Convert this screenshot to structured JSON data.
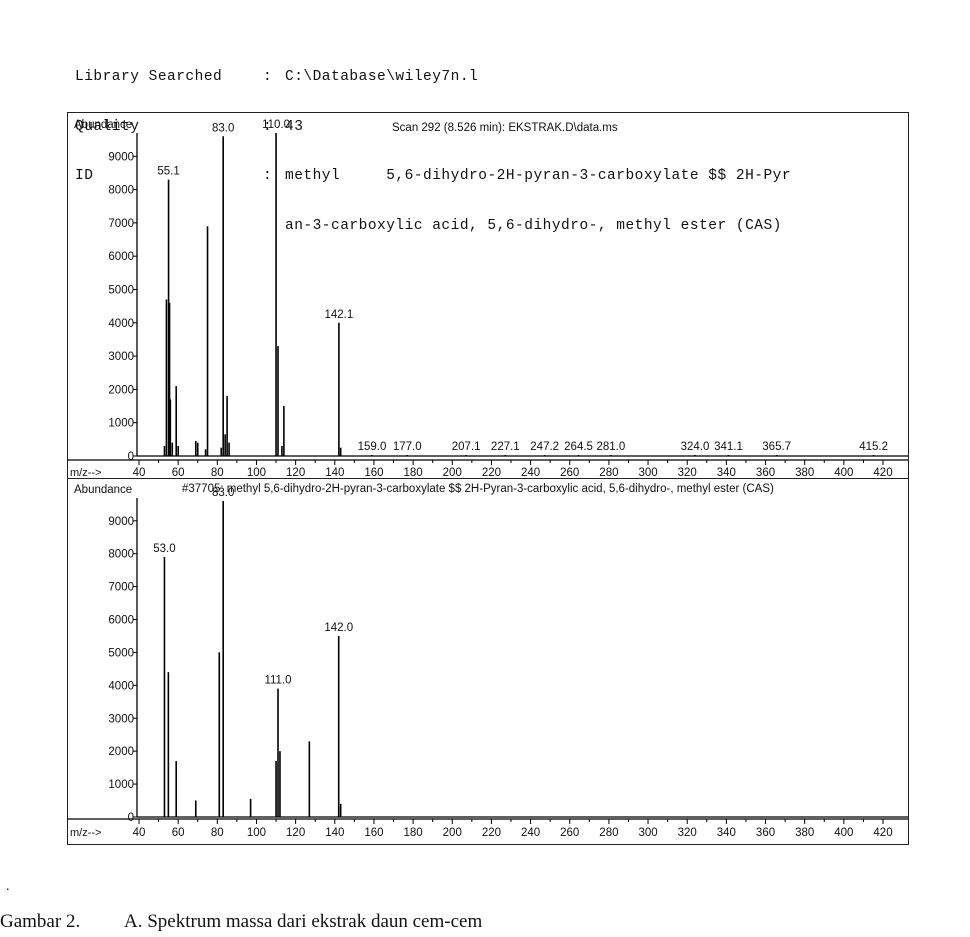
{
  "header": {
    "library_label": "Library Searched",
    "library_value": "C:\\Database\\wiley7n.l",
    "quality_label": "Quality",
    "quality_value": "43",
    "id_label": "ID",
    "id_value_line1": "methyl     5,6-dihydro-2H-pyran-3-carboxylate $$ 2H-Pyr",
    "id_value_line2": "an-3-carboxylic acid, 5,6-dihydro-, methyl ester (CAS)",
    "separator": ":"
  },
  "chart_data": [
    {
      "type": "bar",
      "title": "Scan 292 (8.526 min): EKSTRAK.D\\data.ms",
      "ylabel": "Abundance",
      "xlabel": "m/z-->",
      "xlim": [
        40,
        425
      ],
      "ylim": [
        0,
        10300
      ],
      "xticks": [
        40,
        60,
        80,
        100,
        120,
        140,
        160,
        180,
        200,
        220,
        240,
        260,
        280,
        300,
        320,
        340,
        360,
        380,
        400,
        420
      ],
      "yticks": [
        0,
        1000,
        2000,
        3000,
        4000,
        5000,
        6000,
        7000,
        8000,
        9000
      ],
      "peaks": [
        {
          "mz": 53,
          "abundance": 300
        },
        {
          "mz": 54,
          "abundance": 4700
        },
        {
          "mz": 55.1,
          "abundance": 8300,
          "label": "55.1"
        },
        {
          "mz": 55.6,
          "abundance": 4600
        },
        {
          "mz": 56,
          "abundance": 1700
        },
        {
          "mz": 57,
          "abundance": 400
        },
        {
          "mz": 59,
          "abundance": 2100
        },
        {
          "mz": 60,
          "abundance": 300
        },
        {
          "mz": 69,
          "abundance": 450
        },
        {
          "mz": 70,
          "abundance": 400
        },
        {
          "mz": 74,
          "abundance": 200
        },
        {
          "mz": 75,
          "abundance": 6900
        },
        {
          "mz": 82,
          "abundance": 250
        },
        {
          "mz": 83,
          "abundance": 9600,
          "label": "83.0"
        },
        {
          "mz": 84,
          "abundance": 650
        },
        {
          "mz": 85,
          "abundance": 1800
        },
        {
          "mz": 86,
          "abundance": 400
        },
        {
          "mz": 110,
          "abundance": 9700,
          "label": "110.0"
        },
        {
          "mz": 111,
          "abundance": 3300
        },
        {
          "mz": 113,
          "abundance": 300
        },
        {
          "mz": 114,
          "abundance": 1500
        },
        {
          "mz": 142.1,
          "abundance": 4000,
          "label": "142.1"
        },
        {
          "mz": 143,
          "abundance": 250
        },
        {
          "mz": 159,
          "abundance": 30,
          "label": "159.0"
        },
        {
          "mz": 177,
          "abundance": 30,
          "label": "177.0"
        },
        {
          "mz": 207.1,
          "abundance": 30,
          "label": "207.1"
        },
        {
          "mz": 227.1,
          "abundance": 30,
          "label": "227.1"
        },
        {
          "mz": 247.2,
          "abundance": 30,
          "label": "247.2"
        },
        {
          "mz": 264.5,
          "abundance": 30,
          "label": "264.5"
        },
        {
          "mz": 281,
          "abundance": 30,
          "label": "281.0"
        },
        {
          "mz": 324,
          "abundance": 30,
          "label": "324.0"
        },
        {
          "mz": 341.1,
          "abundance": 30,
          "label": "341.1"
        },
        {
          "mz": 365.7,
          "abundance": 30,
          "label": "365.7"
        },
        {
          "mz": 415.2,
          "abundance": 30,
          "label": "415.2"
        }
      ]
    },
    {
      "type": "bar",
      "title": "#37705: methyl     5,6-dihydro-2H-pyran-3-carboxylate $$ 2H-Pyran-3-carboxylic acid, 5,6-dihydro-, methyl ester (CAS)",
      "ylabel": "Abundance",
      "xlabel": "m/z-->",
      "xlim": [
        40,
        425
      ],
      "ylim": [
        0,
        10300
      ],
      "xticks": [
        40,
        60,
        80,
        100,
        120,
        140,
        160,
        180,
        200,
        220,
        240,
        260,
        280,
        300,
        320,
        340,
        360,
        380,
        400,
        420
      ],
      "yticks": [
        0,
        1000,
        2000,
        3000,
        4000,
        5000,
        6000,
        7000,
        8000,
        9000
      ],
      "peaks": [
        {
          "mz": 53,
          "abundance": 7900,
          "label": "53.0"
        },
        {
          "mz": 55,
          "abundance": 4400
        },
        {
          "mz": 59,
          "abundance": 1700
        },
        {
          "mz": 69,
          "abundance": 500
        },
        {
          "mz": 81,
          "abundance": 5000
        },
        {
          "mz": 83,
          "abundance": 9600,
          "label": "83.0"
        },
        {
          "mz": 97,
          "abundance": 550
        },
        {
          "mz": 110,
          "abundance": 1700
        },
        {
          "mz": 111,
          "abundance": 3900,
          "label": "111.0"
        },
        {
          "mz": 112,
          "abundance": 2000
        },
        {
          "mz": 127,
          "abundance": 2300
        },
        {
          "mz": 142,
          "abundance": 5500,
          "label": "142.0"
        },
        {
          "mz": 143,
          "abundance": 400
        }
      ]
    }
  ],
  "caption": {
    "label": "Gambar 2.",
    "text": "A. Spektrum massa dari ekstrak daun cem-cem"
  }
}
